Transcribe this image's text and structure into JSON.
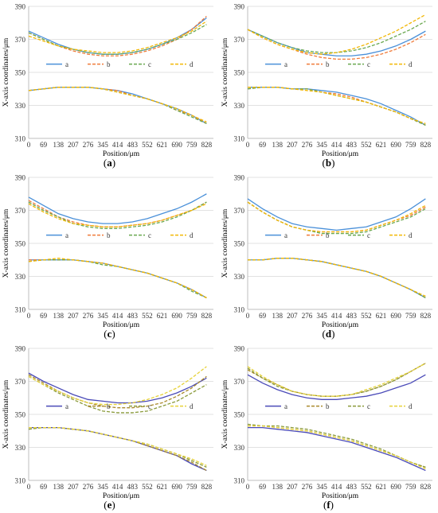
{
  "figure": {
    "series_colors": {
      "a": "#4a90d9",
      "b": "#f07b3a",
      "c": "#6aa84f",
      "d": "#f2b705"
    },
    "alt_colors": {
      "a": "#4a4ab8",
      "b": "#a98a2c",
      "c": "#8a9a3a",
      "d": "#e6d23a"
    }
  },
  "chart_data": [
    {
      "type": "line",
      "panel": "a",
      "caption_letter": "a",
      "xlabel": "Position/μm",
      "ylabel": "X-axis coordinates/μm",
      "xlim": [
        0,
        860
      ],
      "ylim": [
        310,
        390
      ],
      "xticks": [
        "0",
        "69",
        "138",
        "207",
        "276",
        "345",
        "414",
        "483",
        "552",
        "621",
        "690",
        "759",
        "828"
      ],
      "yticks": [
        "310",
        "330",
        "350",
        "370",
        "390"
      ],
      "grid": true,
      "legend": [
        "a",
        "b",
        "c",
        "d"
      ],
      "legend_position": "middle",
      "x": [
        0,
        69,
        138,
        207,
        276,
        345,
        414,
        483,
        552,
        621,
        690,
        759,
        828
      ],
      "series": [
        {
          "name": "a",
          "upper": [
            375,
            371,
            367,
            364,
            362,
            361,
            361,
            362,
            364,
            367,
            371,
            376,
            383
          ],
          "lower": [
            339,
            340,
            341,
            341,
            341,
            340,
            339,
            337,
            334,
            331,
            328,
            324,
            319
          ]
        },
        {
          "name": "b",
          "upper": [
            374,
            370,
            366,
            363,
            361,
            360,
            360,
            361,
            363,
            366,
            370,
            376,
            384
          ],
          "lower": [
            339,
            340,
            341,
            341,
            341,
            340,
            339,
            336,
            334,
            331,
            327,
            324,
            319
          ]
        },
        {
          "name": "c",
          "upper": [
            374,
            370,
            366,
            364,
            362,
            361,
            361,
            362,
            364,
            367,
            370,
            374,
            379
          ],
          "lower": [
            339,
            340,
            341,
            341,
            341,
            340,
            338,
            336,
            334,
            331,
            327,
            323,
            319
          ]
        },
        {
          "name": "d",
          "upper": [
            372,
            369,
            366,
            364,
            363,
            362,
            362,
            363,
            365,
            368,
            371,
            375,
            381
          ],
          "lower": [
            339,
            340,
            341,
            341,
            341,
            340,
            338,
            336,
            334,
            331,
            328,
            324,
            320
          ]
        }
      ]
    },
    {
      "type": "line",
      "panel": "b",
      "caption_letter": "b",
      "xlabel": "Position/μm",
      "ylabel": "X-axis coordinates/μm",
      "xlim": [
        0,
        860
      ],
      "ylim": [
        310,
        390
      ],
      "xticks": [
        "0",
        "69",
        "138",
        "207",
        "276",
        "345",
        "414",
        "483",
        "552",
        "621",
        "690",
        "759",
        "828"
      ],
      "yticks": [
        "310",
        "330",
        "350",
        "370",
        "390"
      ],
      "grid": true,
      "legend": [
        "a",
        "b",
        "c",
        "d"
      ],
      "legend_position": "middle",
      "x": [
        0,
        69,
        138,
        207,
        276,
        345,
        414,
        483,
        552,
        621,
        690,
        759,
        828
      ],
      "series": [
        {
          "name": "a",
          "upper": [
            376,
            372,
            368,
            365,
            362,
            361,
            360,
            360,
            361,
            363,
            366,
            370,
            375
          ],
          "lower": [
            341,
            341,
            341,
            340,
            340,
            339,
            338,
            336,
            334,
            331,
            327,
            323,
            318
          ]
        },
        {
          "name": "b",
          "upper": [
            376,
            371,
            367,
            364,
            361,
            359,
            358,
            358,
            359,
            361,
            364,
            368,
            373
          ],
          "lower": [
            340,
            341,
            341,
            340,
            340,
            338,
            337,
            335,
            332,
            329,
            326,
            322,
            318
          ]
        },
        {
          "name": "c",
          "upper": [
            376,
            372,
            368,
            365,
            363,
            362,
            362,
            363,
            365,
            368,
            372,
            376,
            381
          ],
          "lower": [
            340,
            341,
            341,
            340,
            340,
            338,
            336,
            334,
            332,
            329,
            326,
            322,
            318
          ]
        },
        {
          "name": "d",
          "upper": [
            376,
            371,
            367,
            364,
            362,
            361,
            362,
            364,
            367,
            371,
            375,
            380,
            385
          ],
          "lower": [
            341,
            341,
            341,
            340,
            339,
            338,
            336,
            334,
            332,
            329,
            326,
            322,
            319
          ]
        }
      ]
    },
    {
      "type": "line",
      "panel": "c",
      "caption_letter": "c",
      "xlabel": "Position/μm",
      "ylabel": "X-axis coordinates/μm",
      "xlim": [
        0,
        860
      ],
      "ylim": [
        310,
        390
      ],
      "xticks": [
        "0",
        "69",
        "138",
        "207",
        "276",
        "345",
        "414",
        "483",
        "552",
        "621",
        "690",
        "759",
        "828"
      ],
      "yticks": [
        "310",
        "330",
        "350",
        "370",
        "390"
      ],
      "grid": true,
      "legend": [
        "a",
        "b",
        "c",
        "d"
      ],
      "legend_position": "middle",
      "x": [
        0,
        69,
        138,
        207,
        276,
        345,
        414,
        483,
        552,
        621,
        690,
        759,
        828
      ],
      "series": [
        {
          "name": "a",
          "upper": [
            378,
            373,
            368,
            365,
            363,
            362,
            362,
            363,
            365,
            368,
            371,
            375,
            380
          ],
          "lower": [
            340,
            340,
            340,
            340,
            339,
            338,
            336,
            334,
            332,
            329,
            326,
            322,
            317
          ]
        },
        {
          "name": "b",
          "upper": [
            376,
            371,
            366,
            363,
            361,
            360,
            360,
            361,
            362,
            364,
            367,
            370,
            375
          ],
          "lower": [
            340,
            340,
            340,
            340,
            339,
            338,
            336,
            334,
            332,
            329,
            326,
            322,
            317
          ]
        },
        {
          "name": "c",
          "upper": [
            375,
            370,
            366,
            362,
            360,
            359,
            359,
            360,
            361,
            363,
            366,
            370,
            375
          ],
          "lower": [
            339,
            340,
            340,
            340,
            339,
            337,
            336,
            334,
            332,
            329,
            326,
            321,
            317
          ]
        },
        {
          "name": "d",
          "upper": [
            374,
            369,
            365,
            362,
            361,
            360,
            360,
            361,
            362,
            364,
            367,
            370,
            374
          ],
          "lower": [
            339,
            340,
            341,
            340,
            339,
            338,
            336,
            334,
            332,
            329,
            326,
            322,
            317
          ]
        }
      ]
    },
    {
      "type": "line",
      "panel": "d",
      "caption_letter": "d",
      "xlabel": "Position/μm",
      "ylabel": "X-axis coordinates/μm",
      "xlim": [
        0,
        860
      ],
      "ylim": [
        310,
        390
      ],
      "xticks": [
        "0",
        "69",
        "138",
        "207",
        "276",
        "345",
        "414",
        "483",
        "552",
        "621",
        "690",
        "759",
        "828"
      ],
      "yticks": [
        "310",
        "330",
        "350",
        "370",
        "390"
      ],
      "grid": true,
      "legend": [
        "a",
        "b",
        "c",
        "d"
      ],
      "legend_position": "middle",
      "x": [
        0,
        69,
        138,
        207,
        276,
        345,
        414,
        483,
        552,
        621,
        690,
        759,
        828
      ],
      "series": [
        {
          "name": "a",
          "upper": [
            377,
            371,
            366,
            362,
            360,
            359,
            358,
            359,
            360,
            363,
            366,
            371,
            377
          ],
          "lower": [
            340,
            340,
            341,
            341,
            340,
            339,
            337,
            335,
            333,
            330,
            326,
            322,
            317
          ]
        },
        {
          "name": "b",
          "upper": [
            375,
            369,
            364,
            360,
            358,
            357,
            357,
            357,
            358,
            361,
            364,
            367,
            372
          ],
          "lower": [
            340,
            340,
            341,
            341,
            340,
            339,
            337,
            335,
            333,
            330,
            326,
            322,
            317
          ]
        },
        {
          "name": "c",
          "upper": [
            375,
            369,
            364,
            360,
            358,
            356,
            356,
            356,
            357,
            360,
            363,
            366,
            371
          ],
          "lower": [
            340,
            340,
            341,
            341,
            340,
            339,
            337,
            335,
            333,
            330,
            326,
            322,
            317
          ]
        },
        {
          "name": "d",
          "upper": [
            375,
            369,
            364,
            360,
            358,
            357,
            357,
            357,
            358,
            361,
            364,
            368,
            373
          ],
          "lower": [
            340,
            340,
            341,
            341,
            340,
            339,
            337,
            335,
            333,
            330,
            326,
            322,
            318
          ]
        }
      ]
    },
    {
      "type": "line",
      "panel": "e",
      "caption_letter": "e",
      "xlabel": "Position/μm",
      "ylabel": "X-axis coordinates/μm",
      "xlim": [
        0,
        860
      ],
      "ylim": [
        310,
        390
      ],
      "xticks": [
        "0",
        "69",
        "138",
        "207",
        "276",
        "345",
        "414",
        "483",
        "552",
        "621",
        "690",
        "759",
        "828"
      ],
      "yticks": [
        "310",
        "330",
        "350",
        "370",
        "390"
      ],
      "grid": true,
      "legend": [
        "a",
        "b",
        "c",
        "d"
      ],
      "legend_position": "middle",
      "palette": "alt",
      "x": [
        0,
        69,
        138,
        207,
        276,
        345,
        414,
        483,
        552,
        621,
        690,
        759,
        828
      ],
      "series": [
        {
          "name": "a",
          "upper": [
            375,
            370,
            366,
            362,
            359,
            358,
            357,
            357,
            358,
            360,
            363,
            367,
            372
          ],
          "lower": [
            342,
            342,
            342,
            341,
            340,
            338,
            336,
            334,
            331,
            328,
            325,
            320,
            316
          ]
        },
        {
          "name": "b",
          "upper": [
            374,
            369,
            364,
            360,
            357,
            355,
            354,
            354,
            355,
            357,
            361,
            366,
            373
          ],
          "lower": [
            342,
            342,
            342,
            341,
            340,
            338,
            336,
            334,
            331,
            328,
            325,
            321,
            316
          ]
        },
        {
          "name": "c",
          "upper": [
            373,
            368,
            363,
            359,
            355,
            352,
            351,
            351,
            352,
            355,
            358,
            363,
            368
          ],
          "lower": [
            341,
            342,
            342,
            341,
            340,
            338,
            336,
            334,
            332,
            329,
            326,
            322,
            318
          ]
        },
        {
          "name": "d",
          "upper": [
            373,
            368,
            364,
            360,
            357,
            356,
            356,
            357,
            359,
            362,
            366,
            372,
            379
          ],
          "lower": [
            342,
            342,
            342,
            341,
            340,
            338,
            336,
            334,
            332,
            329,
            326,
            323,
            319
          ]
        }
      ]
    },
    {
      "type": "line",
      "panel": "f",
      "caption_letter": "f",
      "xlabel": "Position/μm",
      "ylabel": "X-axis coordinates/μm",
      "xlim": [
        0,
        860
      ],
      "ylim": [
        310,
        390
      ],
      "xticks": [
        "0",
        "69",
        "138",
        "207",
        "276",
        "345",
        "414",
        "483",
        "552",
        "621",
        "690",
        "759",
        "828"
      ],
      "yticks": [
        "310",
        "330",
        "350",
        "370",
        "390"
      ],
      "grid": true,
      "legend": [
        "a",
        "b",
        "c",
        "d"
      ],
      "legend_position": "middle",
      "palette": "alt",
      "x": [
        0,
        69,
        138,
        207,
        276,
        345,
        414,
        483,
        552,
        621,
        690,
        759,
        828
      ],
      "series": [
        {
          "name": "a",
          "upper": [
            374,
            369,
            365,
            362,
            360,
            359,
            359,
            360,
            361,
            363,
            366,
            369,
            374
          ],
          "lower": [
            342,
            342,
            341,
            340,
            339,
            337,
            335,
            333,
            330,
            327,
            324,
            320,
            316
          ]
        },
        {
          "name": "b",
          "upper": [
            377,
            372,
            368,
            364,
            362,
            361,
            361,
            362,
            364,
            367,
            371,
            376,
            381
          ],
          "lower": [
            343,
            343,
            342,
            341,
            340,
            338,
            336,
            334,
            331,
            328,
            325,
            321,
            318
          ]
        },
        {
          "name": "c",
          "upper": [
            378,
            372,
            367,
            364,
            362,
            361,
            361,
            362,
            364,
            367,
            371,
            376,
            381
          ],
          "lower": [
            344,
            343,
            343,
            342,
            341,
            339,
            337,
            335,
            332,
            329,
            325,
            321,
            318
          ]
        },
        {
          "name": "d",
          "upper": [
            379,
            373,
            368,
            364,
            362,
            361,
            361,
            362,
            365,
            368,
            372,
            376,
            381
          ],
          "lower": [
            343,
            343,
            342,
            341,
            340,
            338,
            336,
            334,
            331,
            328,
            325,
            321,
            317
          ]
        }
      ]
    }
  ]
}
